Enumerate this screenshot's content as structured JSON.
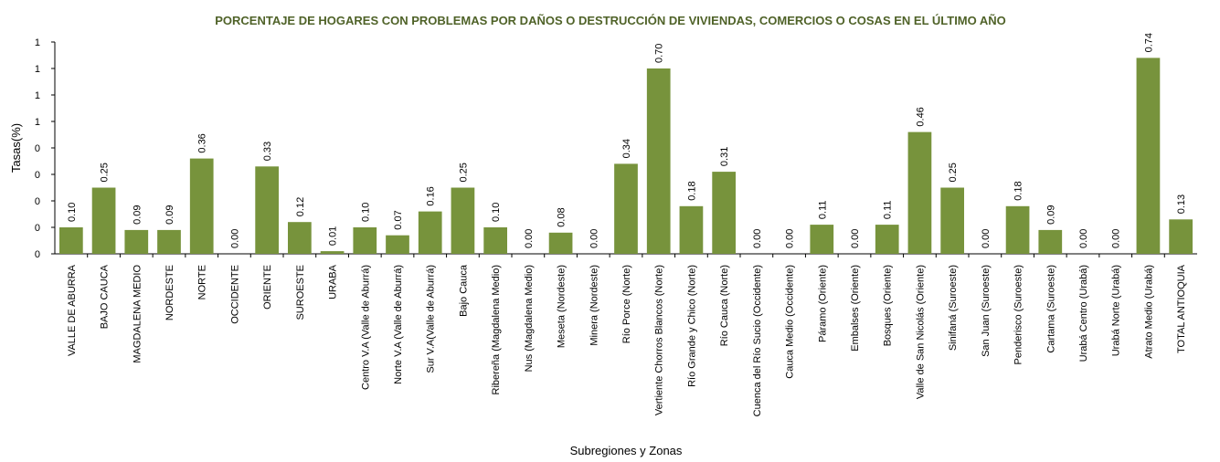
{
  "chart_data": {
    "type": "bar",
    "title": "PORCENTAJE DE HOGARES CON PROBLEMAS POR DAÑOS O DESTRUCCIÓN DE VIVIENDAS, COMERCIOS O COSAS EN EL ÚLTIMO AÑO",
    "x_label": "Subregiones y Zonas",
    "y_label": "Tasas(%)",
    "categories": [
      "VALLE DE ABURRA",
      "BAJO CAUCA",
      "MAGDALENA MEDIO",
      "NORDESTE",
      "NORTE",
      "OCCIDENTE",
      "ORIENTE",
      "SUROESTE",
      "URABA",
      "Centro V.A (Valle de Aburrá)",
      "Norte V.A (Valle de Aburrá)",
      "Sur V.A(Valle de Aburrá)",
      "Bajo Cauca",
      "Ribereña  (Magdalena Medio)",
      "Nus  (Magdalena Medio)",
      "Meseta  (Nordeste)",
      "Minera  (Nordeste)",
      "Río Porce   (Norte)",
      "Vertiente Chorros Blancos (Norte)",
      "Río Grande y Chico  (Norte)",
      "Río Cauca  (Norte)",
      "Cuenca del Río Sucio  (Occidente)",
      "Cauca Medio  (Occidente)",
      "Páramo  (Oriente)",
      "Embalses (Oriente)",
      "Bosques  (Oriente)",
      "Valle de San Nicolás (Oriente)",
      "Sinifaná  (Suroeste)",
      "San Juan  (Suroeste)",
      "Penderisco  (Suroeste)",
      "Cartama  (Suroeste)",
      "Urabá Centro  (Urabá)",
      "Urabá Norte  (Urabá)",
      "Atrato Medio  (Urabá)",
      "TOTAL ANTIOQUIA"
    ],
    "values": [
      0.1,
      0.25,
      0.09,
      0.09,
      0.36,
      0,
      0.33,
      0.12,
      0.01,
      0.1,
      0.07,
      0.16,
      0.25,
      0.1,
      0,
      0.08,
      0,
      0.34,
      0.7,
      0.18,
      0.31,
      0,
      0,
      0.11,
      0,
      0.11,
      0.46,
      0.25,
      0,
      0.18,
      0.09,
      0,
      0,
      0.74,
      0.13
    ],
    "value_labels": [
      "0.10",
      "0.25",
      "0.09",
      "0.09",
      "0.36",
      "0.00",
      "0.33",
      "0.12",
      "0.01",
      "0.10",
      "0.07",
      "0.16",
      "0.25",
      "0.10",
      "0.00",
      "0.08",
      "0.00",
      "0.34",
      "0.70",
      "0.18",
      "0.31",
      "0.00",
      "0.00",
      "0.11",
      "0.00",
      "0.11",
      "0.46",
      "0.25",
      "0.00",
      "0.18",
      "0.09",
      "0.00",
      "0.00",
      "0.74",
      "0.13"
    ],
    "color": "#77933c",
    "ylim": [
      0,
      0.8
    ],
    "yticks": [
      {
        "value": 0,
        "label": "0"
      },
      {
        "value": 0.1,
        "label": "0"
      },
      {
        "value": 0.2,
        "label": "0"
      },
      {
        "value": 0.3,
        "label": "0"
      },
      {
        "value": 0.4,
        "label": "0"
      },
      {
        "value": 0.5,
        "label": "1"
      },
      {
        "value": 0.6,
        "label": "1"
      },
      {
        "value": 0.7,
        "label": "1"
      },
      {
        "value": 0.8,
        "label": "1"
      }
    ],
    "grid": false
  }
}
